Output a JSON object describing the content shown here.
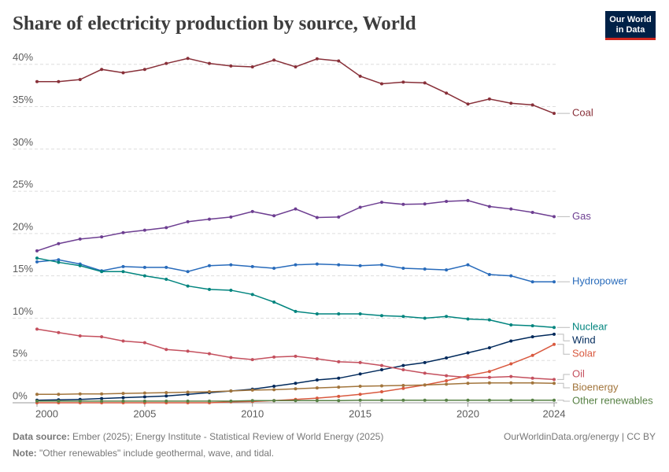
{
  "chart_data": {
    "type": "line",
    "title": "Share of electricity production by source, World",
    "logo": [
      "Our World",
      "in Data"
    ],
    "x": [
      2000,
      2001,
      2002,
      2003,
      2004,
      2005,
      2006,
      2007,
      2008,
      2009,
      2010,
      2011,
      2012,
      2013,
      2014,
      2015,
      2016,
      2017,
      2018,
      2019,
      2020,
      2021,
      2022,
      2023,
      2024
    ],
    "xlim": [
      2000,
      2024
    ],
    "xticks": [
      2000,
      2005,
      2010,
      2015,
      2020,
      2024
    ],
    "ylim": [
      0,
      41
    ],
    "yticks": [
      {
        "value": 0,
        "label": "0%"
      },
      {
        "value": 5,
        "label": "5%"
      },
      {
        "value": 10,
        "label": "10%"
      },
      {
        "value": 15,
        "label": "15%"
      },
      {
        "value": 20,
        "label": "20%"
      },
      {
        "value": 25,
        "label": "25%"
      },
      {
        "value": 30,
        "label": "30%"
      },
      {
        "value": 35,
        "label": "35%"
      },
      {
        "value": 40,
        "label": "40%"
      }
    ],
    "grid": true,
    "series": [
      {
        "name": "Coal",
        "color": "#883039",
        "values": [
          37.95,
          37.95,
          38.2,
          39.4,
          39.0,
          39.4,
          40.1,
          40.7,
          40.1,
          39.8,
          39.7,
          40.5,
          39.7,
          40.65,
          40.4,
          38.6,
          37.7,
          37.9,
          37.8,
          36.6,
          35.3,
          35.9,
          35.4,
          35.2,
          34.2
        ]
      },
      {
        "name": "Gas",
        "color": "#6d3e91",
        "values": [
          17.95,
          18.8,
          19.35,
          19.6,
          20.1,
          20.4,
          20.7,
          21.4,
          21.7,
          21.95,
          22.6,
          22.1,
          22.9,
          21.9,
          21.95,
          23.1,
          23.7,
          23.45,
          23.5,
          23.8,
          23.9,
          23.2,
          22.9,
          22.5,
          22.0
        ]
      },
      {
        "name": "Hydropower",
        "color": "#286bbb",
        "values": [
          16.65,
          16.9,
          16.4,
          15.6,
          16.1,
          16.0,
          16.0,
          15.5,
          16.2,
          16.3,
          16.1,
          15.9,
          16.3,
          16.4,
          16.3,
          16.2,
          16.3,
          15.9,
          15.8,
          15.7,
          16.3,
          15.15,
          15.0,
          14.3,
          14.3
        ]
      },
      {
        "name": "Nuclear",
        "color": "#00847e",
        "values": [
          17.1,
          16.6,
          16.2,
          15.5,
          15.5,
          15.0,
          14.6,
          13.8,
          13.4,
          13.3,
          12.8,
          11.9,
          10.8,
          10.5,
          10.5,
          10.5,
          10.3,
          10.2,
          10.0,
          10.2,
          9.9,
          9.8,
          9.2,
          9.1,
          8.9
        ]
      },
      {
        "name": "Wind",
        "color": "#00295b",
        "values": [
          0.3,
          0.35,
          0.4,
          0.5,
          0.6,
          0.7,
          0.8,
          1.0,
          1.2,
          1.4,
          1.6,
          1.95,
          2.3,
          2.7,
          2.9,
          3.4,
          3.9,
          4.4,
          4.75,
          5.3,
          5.9,
          6.5,
          7.3,
          7.8,
          8.1
        ]
      },
      {
        "name": "Solar",
        "color": "#d9593f",
        "values": [
          0,
          0,
          0,
          0,
          0,
          0,
          0,
          0,
          0,
          0.1,
          0.15,
          0.25,
          0.4,
          0.55,
          0.75,
          1.0,
          1.3,
          1.7,
          2.1,
          2.6,
          3.2,
          3.7,
          4.6,
          5.6,
          6.9
        ]
      },
      {
        "name": "Oil",
        "color": "#c4505e",
        "values": [
          8.7,
          8.3,
          7.9,
          7.8,
          7.3,
          7.1,
          6.3,
          6.1,
          5.8,
          5.35,
          5.1,
          5.4,
          5.5,
          5.2,
          4.85,
          4.75,
          4.4,
          3.9,
          3.5,
          3.2,
          3.0,
          3.0,
          3.1,
          2.9,
          2.75
        ]
      },
      {
        "name": "Bioenergy",
        "color": "#a2753c",
        "values": [
          1.0,
          1.0,
          1.05,
          1.05,
          1.1,
          1.15,
          1.2,
          1.25,
          1.3,
          1.4,
          1.5,
          1.55,
          1.65,
          1.75,
          1.85,
          1.95,
          2.0,
          2.05,
          2.1,
          2.2,
          2.3,
          2.35,
          2.35,
          2.35,
          2.3
        ]
      },
      {
        "name": "Other renewables",
        "color": "#578145",
        "values": [
          0.2,
          0.2,
          0.2,
          0.2,
          0.2,
          0.2,
          0.2,
          0.2,
          0.2,
          0.2,
          0.25,
          0.25,
          0.25,
          0.25,
          0.25,
          0.3,
          0.3,
          0.3,
          0.3,
          0.3,
          0.3,
          0.3,
          0.3,
          0.3,
          0.3
        ]
      }
    ],
    "source_label": "Data source:",
    "source": "Ember (2025); Energy Institute - Statistical Review of World Energy (2025)",
    "credit": "OurWorldinData.org/energy | CC BY",
    "note_label": "Note:",
    "note": "\"Other renewables\" include geothermal, wave, and tidal."
  }
}
